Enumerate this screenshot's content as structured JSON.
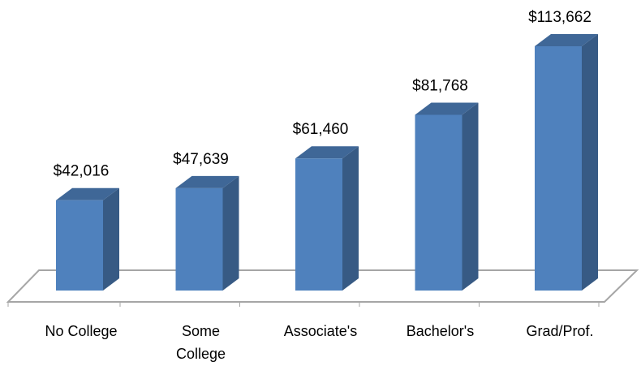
{
  "chart_data": {
    "type": "bar3d",
    "categories": [
      "No College",
      "Some College",
      "Associate's",
      "Bachelor's",
      "Grad/Prof."
    ],
    "values": [
      42016,
      47639,
      61460,
      81768,
      113662
    ],
    "value_labels": [
      "$42,016",
      "$47,639",
      "$61,460",
      "$81,768",
      "$113,662"
    ],
    "color": "#4f81bd"
  }
}
